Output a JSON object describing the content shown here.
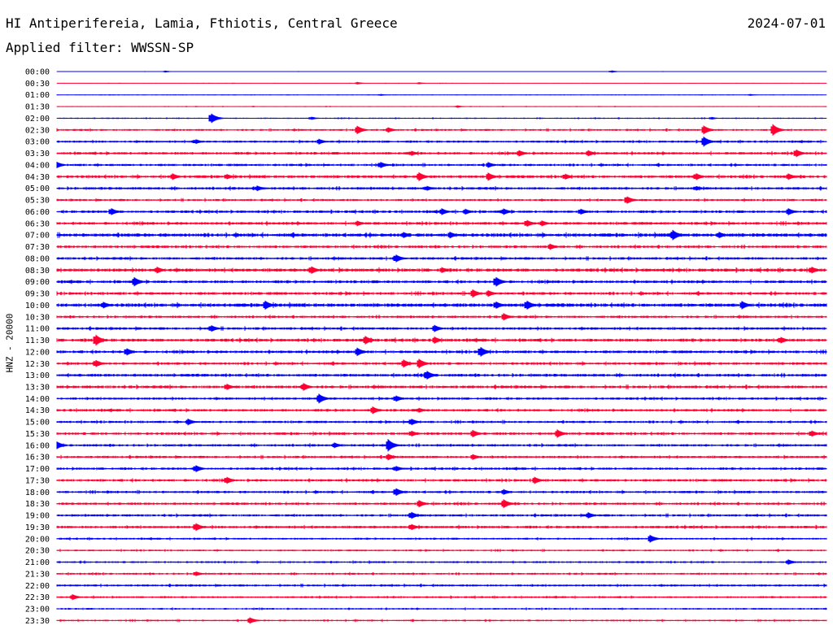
{
  "header": {
    "station": "HI Antiperifereia, Lamia, Fthiotis, Central Greece",
    "date": "2024-07-01",
    "filter": "Applied filter: WWSSN-SP"
  },
  "channel_label": "HNZ - 20000",
  "colors": {
    "odd_rows": "#0000ff",
    "even_rows": "#ff0033",
    "background": "#ffffff"
  },
  "chart_data": {
    "type": "line",
    "title": "HI Antiperifereia, Lamia, Fthiotis, Central Greece",
    "ylabel": "HNZ - 20000",
    "row_interval_minutes": 30,
    "row_labels": [
      "00:00",
      "00:30",
      "01:00",
      "01:30",
      "02:00",
      "02:30",
      "03:00",
      "03:30",
      "04:00",
      "04:30",
      "05:00",
      "05:30",
      "06:00",
      "06:30",
      "07:00",
      "07:30",
      "08:00",
      "08:30",
      "09:00",
      "09:30",
      "10:00",
      "10:30",
      "11:00",
      "11:30",
      "12:00",
      "12:30",
      "13:00",
      "13:30",
      "14:00",
      "14:30",
      "15:00",
      "15:30",
      "16:00",
      "16:30",
      "17:00",
      "17:30",
      "18:00",
      "18:30",
      "19:00",
      "19:30",
      "20:00",
      "20:30",
      "21:00",
      "21:30",
      "22:00",
      "22:30",
      "23:00",
      "23:30"
    ],
    "series": [
      {
        "row": "00:00",
        "noise": 0.25,
        "events": [
          [
            14,
            0.5
          ],
          [
            72,
            0.6
          ]
        ]
      },
      {
        "row": "00:30",
        "noise": 0.3,
        "events": [
          [
            39,
            0.6
          ],
          [
            47,
            0.5
          ]
        ]
      },
      {
        "row": "01:00",
        "noise": 0.35,
        "events": [
          [
            42,
            0.5
          ],
          [
            90,
            0.5
          ]
        ]
      },
      {
        "row": "01:30",
        "noise": 0.4,
        "events": [
          [
            52,
            0.6
          ]
        ]
      },
      {
        "row": "02:00",
        "noise": 0.6,
        "events": [
          [
            20,
            2.5
          ],
          [
            33,
            0.8
          ],
          [
            85,
            0.7
          ]
        ]
      },
      {
        "row": "02:30",
        "noise": 0.9,
        "events": [
          [
            39,
            2.0
          ],
          [
            43,
            1.3
          ],
          [
            84,
            2.2
          ],
          [
            93,
            2.8
          ]
        ]
      },
      {
        "row": "03:00",
        "noise": 1.0,
        "events": [
          [
            18,
            1.2
          ],
          [
            34,
            1.4
          ],
          [
            84,
            2.5
          ]
        ]
      },
      {
        "row": "03:30",
        "noise": 1.2,
        "events": [
          [
            46,
            1.3
          ],
          [
            60,
            1.6
          ],
          [
            69,
            1.5
          ],
          [
            96,
            2.0
          ]
        ]
      },
      {
        "row": "04:00",
        "noise": 1.1,
        "events": [
          [
            0,
            1.5
          ],
          [
            42,
            1.6
          ],
          [
            56,
            1.4
          ]
        ]
      },
      {
        "row": "04:30",
        "noise": 1.3,
        "events": [
          [
            15,
            1.6
          ],
          [
            22,
            1.4
          ],
          [
            47,
            2.2
          ],
          [
            56,
            2.0
          ],
          [
            66,
            1.5
          ],
          [
            83,
            1.8
          ],
          [
            95,
            1.6
          ]
        ]
      },
      {
        "row": "05:00",
        "noise": 1.2,
        "events": [
          [
            26,
            1.3
          ],
          [
            48,
            1.3
          ],
          [
            83,
            1.2
          ]
        ]
      },
      {
        "row": "05:30",
        "noise": 1.0,
        "events": [
          [
            74,
            2.0
          ]
        ]
      },
      {
        "row": "06:00",
        "noise": 1.2,
        "events": [
          [
            7,
            1.8
          ],
          [
            50,
            1.6
          ],
          [
            53,
            1.5
          ],
          [
            58,
            1.6
          ],
          [
            68,
            1.5
          ],
          [
            95,
            1.7
          ]
        ]
      },
      {
        "row": "06:30",
        "noise": 1.3,
        "events": [
          [
            39,
            1.3
          ],
          [
            61,
            1.8
          ],
          [
            63,
            1.4
          ]
        ]
      },
      {
        "row": "07:00",
        "noise": 1.6,
        "events": [
          [
            45,
            1.5
          ],
          [
            51,
            1.7
          ],
          [
            80,
            2.5
          ],
          [
            86,
            1.6
          ]
        ]
      },
      {
        "row": "07:30",
        "noise": 1.2,
        "events": [
          [
            64,
            1.6
          ]
        ]
      },
      {
        "row": "08:00",
        "noise": 1.2,
        "events": [
          [
            44,
            2.0
          ]
        ]
      },
      {
        "row": "08:30",
        "noise": 1.5,
        "events": [
          [
            13,
            1.6
          ],
          [
            33,
            2.0
          ],
          [
            50,
            1.4
          ],
          [
            98,
            1.8
          ]
        ]
      },
      {
        "row": "09:00",
        "noise": 1.3,
        "events": [
          [
            10,
            2.3
          ],
          [
            57,
            2.5
          ]
        ]
      },
      {
        "row": "09:30",
        "noise": 1.3,
        "events": [
          [
            54,
            2.0
          ],
          [
            56,
            1.6
          ]
        ]
      },
      {
        "row": "10:00",
        "noise": 1.6,
        "events": [
          [
            6,
            1.6
          ],
          [
            27,
            2.3
          ],
          [
            57,
            1.9
          ],
          [
            61,
            2.4
          ],
          [
            89,
            2.0
          ]
        ]
      },
      {
        "row": "10:30",
        "noise": 1.1,
        "events": [
          [
            58,
            1.8
          ]
        ]
      },
      {
        "row": "11:00",
        "noise": 1.2,
        "events": [
          [
            20,
            1.7
          ],
          [
            49,
            1.8
          ]
        ]
      },
      {
        "row": "11:30",
        "noise": 1.4,
        "events": [
          [
            5,
            2.8
          ],
          [
            40,
            2.2
          ],
          [
            49,
            1.8
          ],
          [
            94,
            1.7
          ]
        ]
      },
      {
        "row": "12:00",
        "noise": 1.3,
        "events": [
          [
            9,
            1.9
          ],
          [
            39,
            2.0
          ],
          [
            55,
            2.5
          ]
        ]
      },
      {
        "row": "12:30",
        "noise": 1.2,
        "events": [
          [
            5,
            1.8
          ],
          [
            45,
            2.0
          ],
          [
            47,
            2.4
          ]
        ]
      },
      {
        "row": "13:00",
        "noise": 1.3,
        "events": [
          [
            48,
            2.3
          ]
        ]
      },
      {
        "row": "13:30",
        "noise": 1.3,
        "events": [
          [
            22,
            1.6
          ],
          [
            32,
            1.9
          ]
        ]
      },
      {
        "row": "14:00",
        "noise": 1.1,
        "events": [
          [
            34,
            2.4
          ],
          [
            44,
            1.6
          ]
        ]
      },
      {
        "row": "14:30",
        "noise": 1.2,
        "events": [
          [
            41,
            1.8
          ],
          [
            47,
            1.2
          ]
        ]
      },
      {
        "row": "15:00",
        "noise": 1.1,
        "events": [
          [
            17,
            1.6
          ],
          [
            46,
            1.7
          ]
        ]
      },
      {
        "row": "15:30",
        "noise": 1.2,
        "events": [
          [
            46,
            1.5
          ],
          [
            54,
            1.8
          ],
          [
            65,
            2.0
          ],
          [
            98,
            1.6
          ]
        ]
      },
      {
        "row": "16:00",
        "noise": 1.1,
        "events": [
          [
            0,
            1.8
          ],
          [
            36,
            1.4
          ],
          [
            43,
            3.0
          ]
        ]
      },
      {
        "row": "16:30",
        "noise": 1.1,
        "events": [
          [
            43,
            1.6
          ],
          [
            54,
            1.4
          ]
        ]
      },
      {
        "row": "17:00",
        "noise": 1.1,
        "events": [
          [
            18,
            1.8
          ],
          [
            44,
            1.4
          ]
        ]
      },
      {
        "row": "17:30",
        "noise": 1.2,
        "events": [
          [
            22,
            1.8
          ],
          [
            62,
            1.8
          ]
        ]
      },
      {
        "row": "18:00",
        "noise": 1.1,
        "events": [
          [
            44,
            2.0
          ],
          [
            58,
            1.4
          ]
        ]
      },
      {
        "row": "18:30",
        "noise": 1.1,
        "events": [
          [
            47,
            1.8
          ],
          [
            58,
            2.2
          ]
        ]
      },
      {
        "row": "19:00",
        "noise": 1.1,
        "events": [
          [
            46,
            1.8
          ],
          [
            69,
            1.5
          ]
        ]
      },
      {
        "row": "19:30",
        "noise": 1.2,
        "events": [
          [
            18,
            2.0
          ],
          [
            46,
            1.6
          ]
        ]
      },
      {
        "row": "20:00",
        "noise": 0.9,
        "events": [
          [
            77,
            2.0
          ]
        ]
      },
      {
        "row": "20:30",
        "noise": 0.8,
        "events": []
      },
      {
        "row": "21:00",
        "noise": 0.9,
        "events": [
          [
            95,
            1.3
          ]
        ]
      },
      {
        "row": "21:30",
        "noise": 0.9,
        "events": [
          [
            18,
            1.2
          ]
        ]
      },
      {
        "row": "22:00",
        "noise": 1.0,
        "events": []
      },
      {
        "row": "22:30",
        "noise": 0.9,
        "events": [
          [
            2,
            1.4
          ]
        ]
      },
      {
        "row": "23:00",
        "noise": 0.8,
        "events": []
      },
      {
        "row": "23:30",
        "noise": 0.8,
        "events": [
          [
            25,
            1.6
          ]
        ]
      }
    ]
  }
}
